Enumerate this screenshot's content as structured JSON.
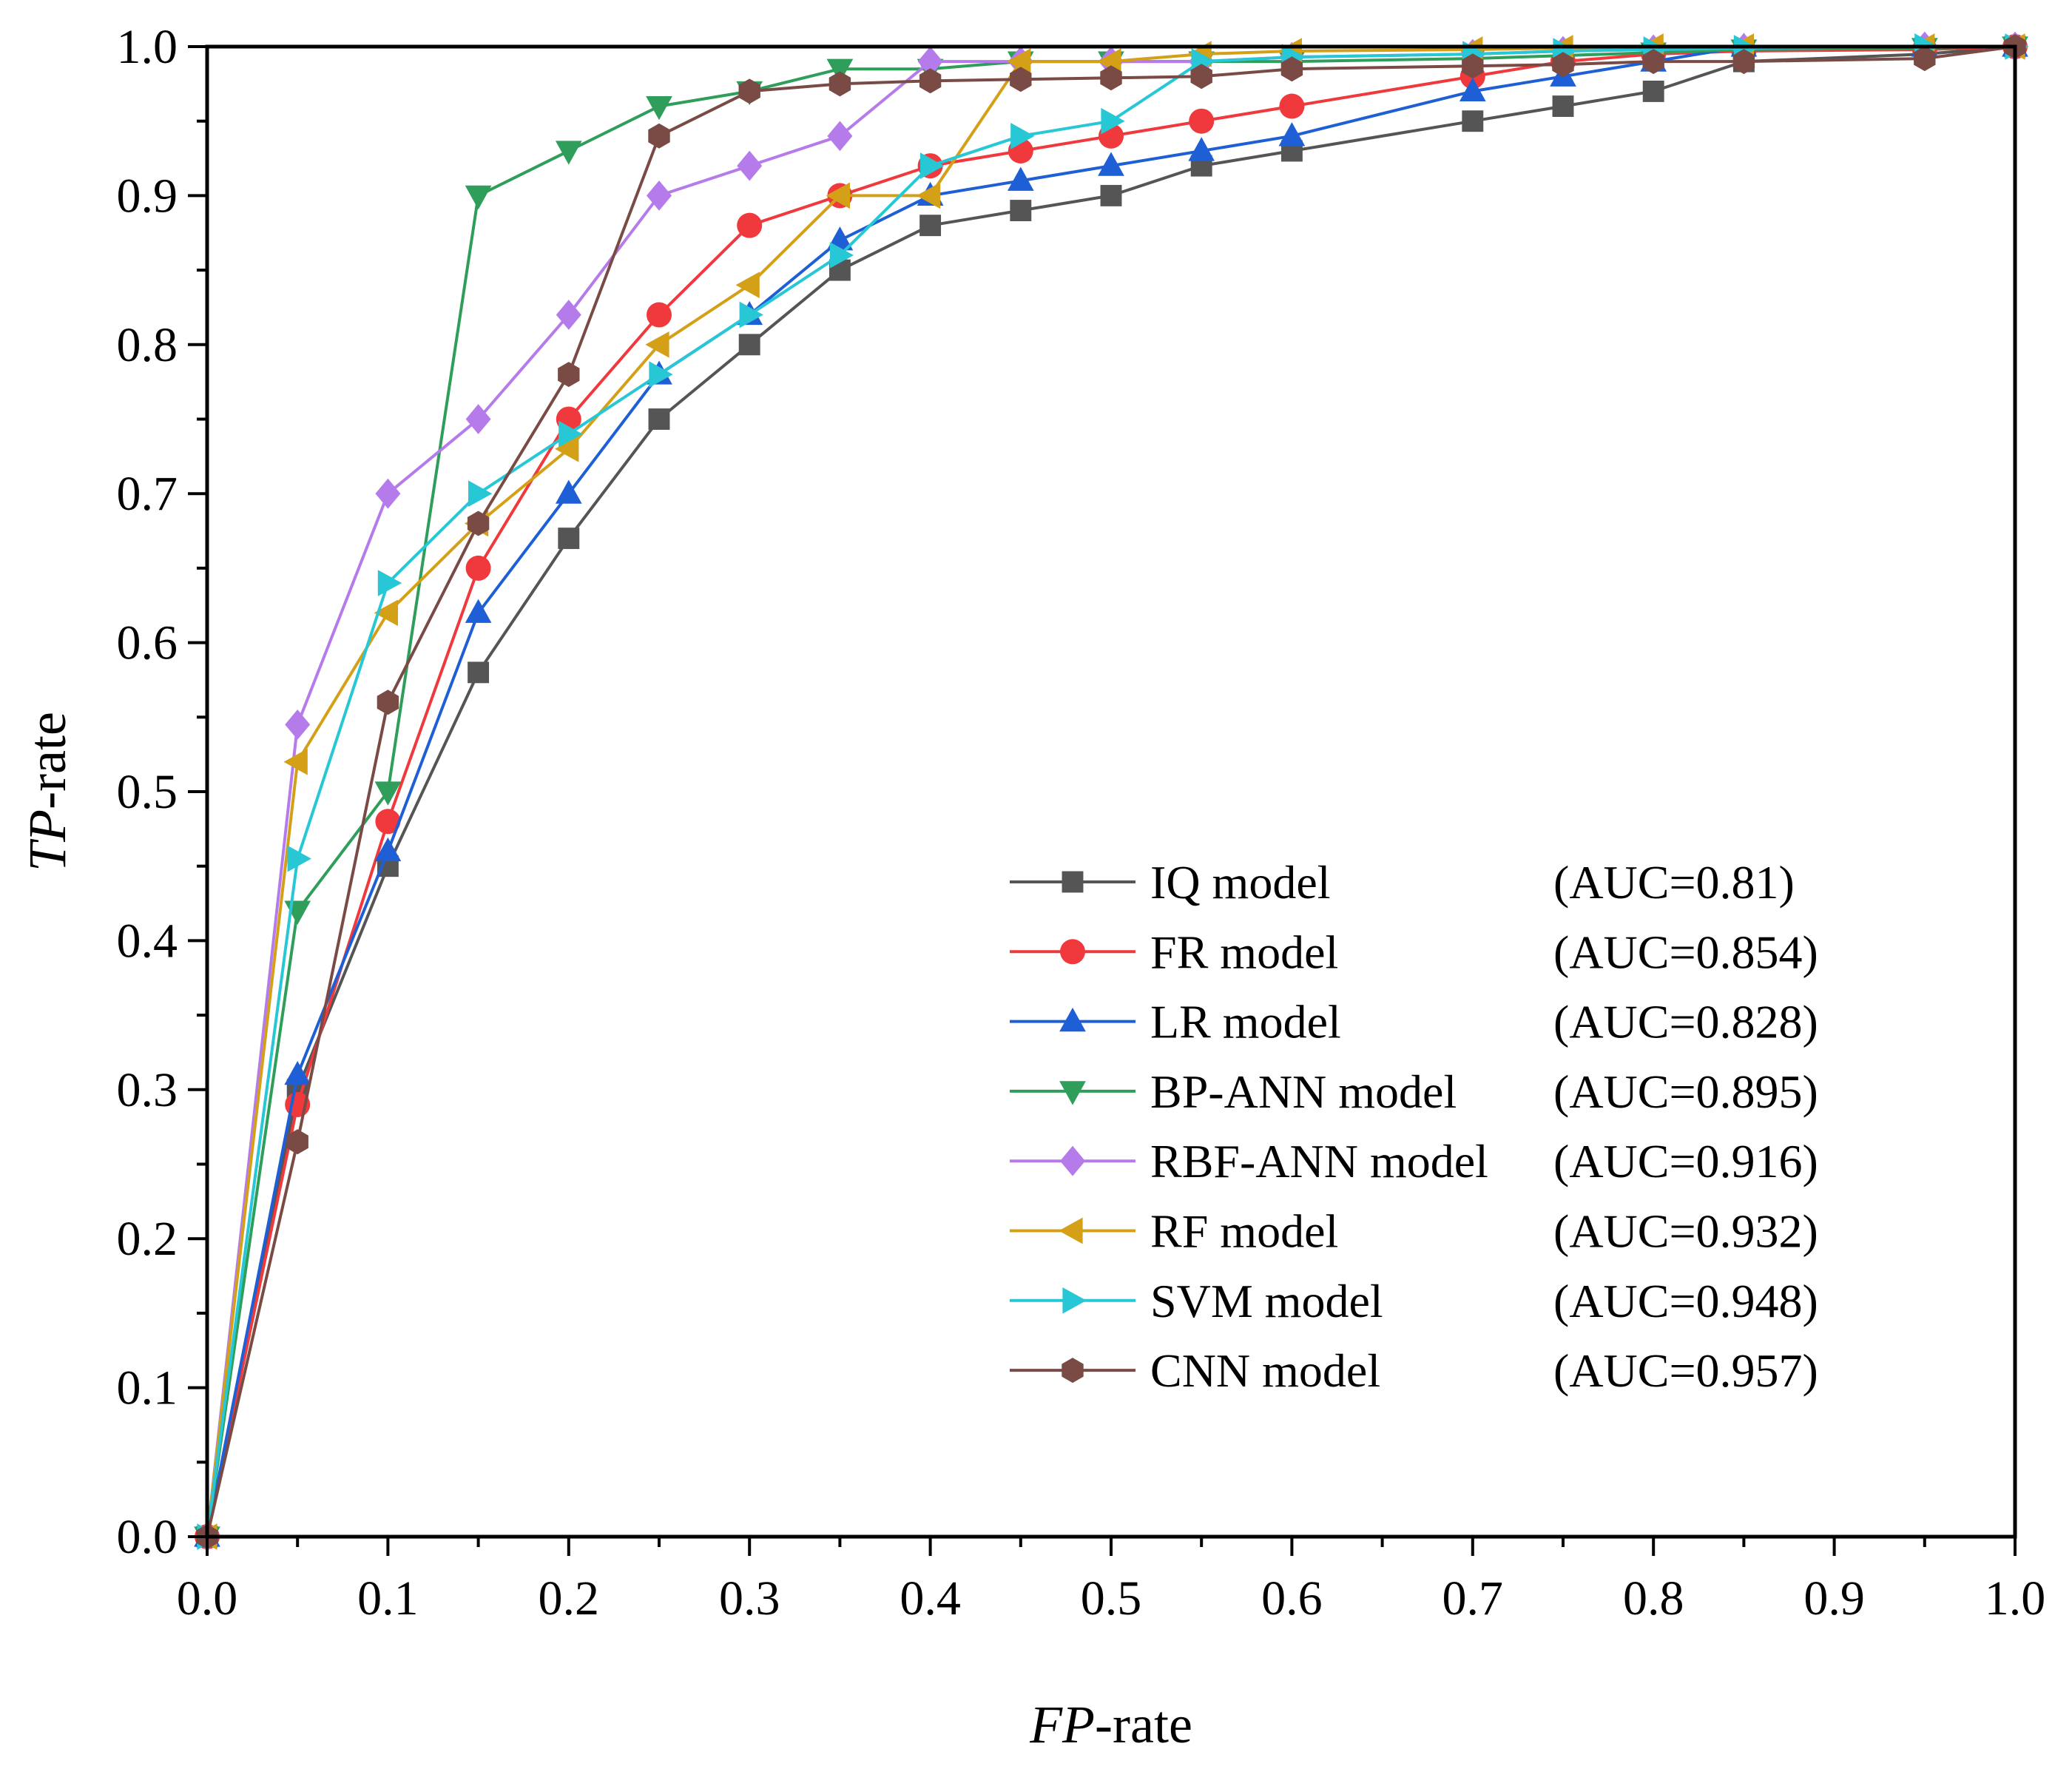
{
  "chart_data": {
    "type": "line",
    "xlabel": {
      "italic": "FP",
      "rest": "-rate"
    },
    "ylabel": {
      "italic": "TP",
      "rest": "-rate"
    },
    "xlim": [
      0,
      1
    ],
    "ylim": [
      0,
      1
    ],
    "grid": false,
    "legend_position": "bottom-right",
    "xticks": [
      "0.0",
      "0.1",
      "0.2",
      "0.3",
      "0.4",
      "0.5",
      "0.6",
      "0.7",
      "0.8",
      "0.9",
      "1.0"
    ],
    "yticks": [
      "0.0",
      "0.1",
      "0.2",
      "0.3",
      "0.4",
      "0.5",
      "0.6",
      "0.7",
      "0.8",
      "0.9",
      "1.0"
    ],
    "series": [
      {
        "name": "IQ model",
        "auc": "(AUC=0.81)",
        "color": "#555555",
        "marker": "square",
        "x": [
          0,
          0.05,
          0.1,
          0.15,
          0.2,
          0.25,
          0.3,
          0.35,
          0.4,
          0.45,
          0.5,
          0.55,
          0.6,
          0.7,
          0.75,
          0.8,
          0.85,
          0.95,
          1.0
        ],
        "y": [
          0,
          0.3,
          0.45,
          0.58,
          0.67,
          0.75,
          0.8,
          0.85,
          0.88,
          0.89,
          0.9,
          0.92,
          0.93,
          0.95,
          0.96,
          0.97,
          0.99,
          0.995,
          1.0
        ]
      },
      {
        "name": "FR model",
        "auc": "(AUC=0.854)",
        "color": "#f0393c",
        "marker": "circle",
        "x": [
          0,
          0.05,
          0.1,
          0.15,
          0.2,
          0.25,
          0.3,
          0.35,
          0.4,
          0.45,
          0.5,
          0.55,
          0.6,
          0.7,
          0.75,
          0.8,
          0.85,
          0.95,
          1.0
        ],
        "y": [
          0,
          0.29,
          0.48,
          0.65,
          0.75,
          0.82,
          0.88,
          0.9,
          0.92,
          0.93,
          0.94,
          0.95,
          0.96,
          0.98,
          0.99,
          0.995,
          0.997,
          0.998,
          1.0
        ]
      },
      {
        "name": "LR model",
        "auc": "(AUC=0.828)",
        "color": "#1f5fd6",
        "marker": "triangle-up",
        "x": [
          0,
          0.05,
          0.1,
          0.15,
          0.2,
          0.25,
          0.3,
          0.35,
          0.4,
          0.45,
          0.5,
          0.55,
          0.6,
          0.7,
          0.75,
          0.8,
          0.85,
          0.95,
          1.0
        ],
        "y": [
          0,
          0.31,
          0.46,
          0.62,
          0.7,
          0.78,
          0.82,
          0.87,
          0.9,
          0.91,
          0.92,
          0.93,
          0.94,
          0.97,
          0.98,
          0.99,
          1.0,
          1.0,
          1.0
        ]
      },
      {
        "name": "BP-ANN model",
        "auc": "(AUC=0.895)",
        "color": "#2e9e5a",
        "marker": "triangle-down",
        "x": [
          0,
          0.05,
          0.1,
          0.15,
          0.2,
          0.25,
          0.3,
          0.35,
          0.4,
          0.45,
          0.5,
          0.55,
          0.6,
          0.7,
          0.75,
          0.8,
          0.85,
          0.95,
          1.0
        ],
        "y": [
          0,
          0.42,
          0.5,
          0.9,
          0.93,
          0.96,
          0.97,
          0.985,
          0.985,
          0.99,
          0.99,
          0.99,
          0.99,
          0.992,
          0.994,
          0.996,
          0.998,
          0.999,
          1.0
        ]
      },
      {
        "name": "RBF-ANN model",
        "auc": "(AUC=0.916)",
        "color": "#b57bea",
        "marker": "diamond",
        "x": [
          0,
          0.05,
          0.1,
          0.15,
          0.2,
          0.25,
          0.3,
          0.35,
          0.4,
          0.45,
          0.5,
          0.55,
          0.6,
          0.7,
          0.75,
          0.8,
          0.85,
          0.95,
          1.0
        ],
        "y": [
          0,
          0.545,
          0.7,
          0.75,
          0.82,
          0.9,
          0.92,
          0.94,
          0.99,
          0.99,
          0.99,
          0.99,
          0.993,
          0.995,
          0.997,
          0.998,
          0.999,
          1.0,
          1.0
        ]
      },
      {
        "name": "RF model",
        "auc": "(AUC=0.932)",
        "color": "#d4a017",
        "marker": "triangle-left",
        "x": [
          0,
          0.05,
          0.1,
          0.15,
          0.2,
          0.25,
          0.3,
          0.35,
          0.4,
          0.45,
          0.5,
          0.55,
          0.6,
          0.7,
          0.75,
          0.8,
          0.85,
          0.95,
          1.0
        ],
        "y": [
          0,
          0.52,
          0.62,
          0.68,
          0.73,
          0.8,
          0.84,
          0.9,
          0.9,
          0.99,
          0.99,
          0.995,
          0.997,
          0.998,
          0.999,
          1.0,
          1.0,
          1.0,
          1.0
        ]
      },
      {
        "name": "SVM model",
        "auc": "(AUC=0.948)",
        "color": "#27c7d6",
        "marker": "triangle-right",
        "x": [
          0,
          0.05,
          0.1,
          0.15,
          0.2,
          0.25,
          0.3,
          0.35,
          0.4,
          0.45,
          0.5,
          0.55,
          0.6,
          0.7,
          0.75,
          0.8,
          0.85,
          0.95,
          1.0
        ],
        "y": [
          0,
          0.455,
          0.64,
          0.7,
          0.74,
          0.78,
          0.82,
          0.86,
          0.92,
          0.94,
          0.95,
          0.99,
          0.993,
          0.995,
          0.997,
          0.998,
          0.999,
          1.0,
          1.0
        ]
      },
      {
        "name": "CNN model",
        "auc": "(AUC=0.957)",
        "color": "#7a4b44",
        "marker": "hexagon",
        "x": [
          0,
          0.05,
          0.1,
          0.15,
          0.2,
          0.25,
          0.3,
          0.35,
          0.4,
          0.45,
          0.5,
          0.55,
          0.6,
          0.7,
          0.75,
          0.8,
          0.85,
          0.95,
          1.0
        ],
        "y": [
          0,
          0.265,
          0.56,
          0.68,
          0.78,
          0.94,
          0.97,
          0.975,
          0.977,
          0.978,
          0.979,
          0.98,
          0.985,
          0.987,
          0.988,
          0.99,
          0.99,
          0.992,
          1.0
        ]
      }
    ]
  }
}
